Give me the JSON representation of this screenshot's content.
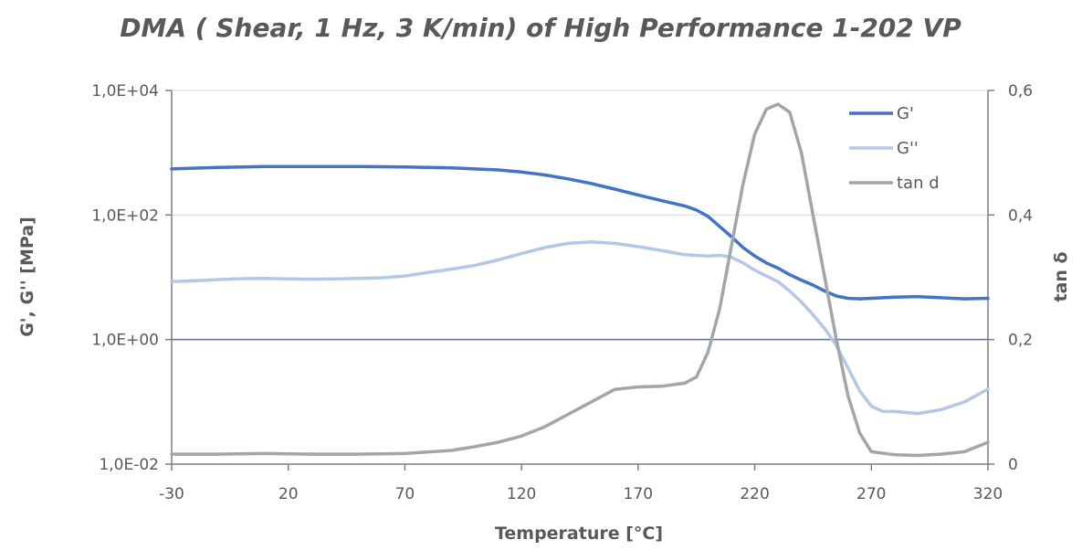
{
  "chart_data": {
    "type": "line",
    "title": "DMA ( Shear, 1 Hz, 3 K/min) of High Performance 1-202 VP",
    "xlabel": "Temperature [°C]",
    "ylabel": "G', G'' [MPa]",
    "y2label": "tan δ",
    "xlim": [
      -30,
      320
    ],
    "x_ticks": [
      "-30",
      "20",
      "70",
      "120",
      "170",
      "220",
      "270",
      "320"
    ],
    "ylim": [
      0.01,
      10000
    ],
    "y_scale": "log",
    "y_ticks": [
      "1,0E-02",
      "1,0E+00",
      "1,0E+02",
      "1,0E+04"
    ],
    "y2lim": [
      0,
      0.6
    ],
    "y2_ticks": [
      "0",
      "0,2",
      "0,4",
      "0,6"
    ],
    "grid": true,
    "legend_position": "top-right",
    "colors": {
      "G'": "#4472C4",
      "G''": "#B4C7E7",
      "tan d": "#A5A5A5",
      "gridline": "#D9D9D9",
      "axis": "#7F7F7F",
      "highlight-line": "#4472C4"
    },
    "series": [
      {
        "name": "G'",
        "axis": "left",
        "x": [
          -30,
          -10,
          10,
          30,
          50,
          70,
          90,
          110,
          120,
          130,
          140,
          150,
          160,
          170,
          180,
          190,
          195,
          200,
          205,
          210,
          215,
          220,
          225,
          230,
          235,
          240,
          245,
          250,
          255,
          260,
          265,
          270,
          280,
          290,
          300,
          310,
          320
        ],
        "y": [
          550,
          580,
          600,
          600,
          600,
          590,
          570,
          530,
          490,
          440,
          380,
          320,
          260,
          210,
          170,
          140,
          120,
          95,
          65,
          45,
          30,
          22,
          17,
          14,
          11,
          9,
          7.5,
          6,
          5,
          4.6,
          4.5,
          4.6,
          4.8,
          4.9,
          4.7,
          4.5,
          4.6
        ]
      },
      {
        "name": "G''",
        "axis": "left",
        "x": [
          -30,
          -20,
          -10,
          0,
          10,
          20,
          30,
          40,
          50,
          60,
          70,
          80,
          90,
          100,
          110,
          120,
          130,
          140,
          150,
          160,
          170,
          180,
          190,
          200,
          205,
          210,
          215,
          220,
          225,
          230,
          235,
          240,
          245,
          250,
          255,
          260,
          265,
          270,
          275,
          280,
          290,
          300,
          310,
          320
        ],
        "y": [
          8.5,
          8.8,
          9.2,
          9.5,
          9.6,
          9.4,
          9.3,
          9.4,
          9.6,
          9.8,
          10.5,
          12,
          13.5,
          15.5,
          19,
          24,
          30,
          35,
          37,
          35,
          31,
          27,
          23,
          22,
          22.5,
          21,
          17,
          13,
          10.5,
          8.5,
          6,
          4,
          2.5,
          1.5,
          0.8,
          0.35,
          0.15,
          0.085,
          0.07,
          0.07,
          0.065,
          0.075,
          0.1,
          0.16
        ]
      },
      {
        "name": "tan d",
        "axis": "right",
        "x": [
          -30,
          -10,
          10,
          30,
          50,
          70,
          90,
          100,
          110,
          120,
          130,
          140,
          150,
          160,
          170,
          180,
          190,
          195,
          200,
          205,
          210,
          215,
          220,
          225,
          230,
          235,
          240,
          245,
          250,
          255,
          260,
          265,
          270,
          280,
          290,
          300,
          310,
          320
        ],
        "y": [
          0.016,
          0.016,
          0.017,
          0.016,
          0.016,
          0.017,
          0.022,
          0.028,
          0.035,
          0.045,
          0.06,
          0.08,
          0.1,
          0.12,
          0.124,
          0.125,
          0.13,
          0.14,
          0.18,
          0.25,
          0.35,
          0.45,
          0.53,
          0.57,
          0.578,
          0.565,
          0.5,
          0.4,
          0.3,
          0.2,
          0.11,
          0.05,
          0.02,
          0.015,
          0.014,
          0.016,
          0.02,
          0.035
        ]
      }
    ]
  }
}
